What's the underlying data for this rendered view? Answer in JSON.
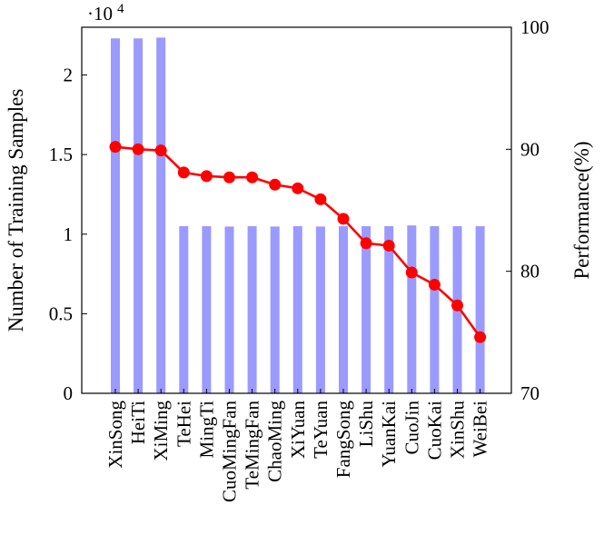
{
  "chart_data": {
    "type": "bar+line",
    "categories": [
      "XinSong",
      "HeiTi",
      "XiMing",
      "TeHei",
      "MingTi",
      "CuoMingFan",
      "TeMingFan",
      "ChaoMing",
      "XiYuan",
      "TeYuan",
      "FangSong",
      "LiShu",
      "YuanKai",
      "CuoJin",
      "CuoKai",
      "XinShu",
      "WeiBei"
    ],
    "series": [
      {
        "type": "bar",
        "axis": "left",
        "values": [
          22300,
          22300,
          22350,
          10500,
          10500,
          10480,
          10500,
          10480,
          10500,
          10480,
          10500,
          10500,
          10500,
          10550,
          10500,
          10500,
          10500
        ],
        "color": "#9a9aff"
      },
      {
        "type": "line",
        "axis": "right",
        "values": [
          90.2,
          90.0,
          89.9,
          88.1,
          87.8,
          87.7,
          87.7,
          87.1,
          86.8,
          85.9,
          84.3,
          82.3,
          82.1,
          79.9,
          78.9,
          77.2,
          74.6
        ],
        "color": "#ff0000"
      }
    ],
    "y_left": {
      "label": "Number of Training Samples",
      "multiplier": "·10",
      "exponent": "4",
      "ticks": [
        0,
        0.5,
        1,
        1.5,
        2
      ],
      "tick_labels": [
        "0",
        "0.5",
        "1",
        "1.5",
        "2"
      ],
      "scale": 10000
    },
    "y_right": {
      "label": "Performance(%)",
      "ticks": [
        70,
        80,
        90,
        100
      ],
      "tick_labels": [
        "70",
        "80",
        "90",
        "100"
      ]
    },
    "grid": false,
    "legend": "none"
  }
}
